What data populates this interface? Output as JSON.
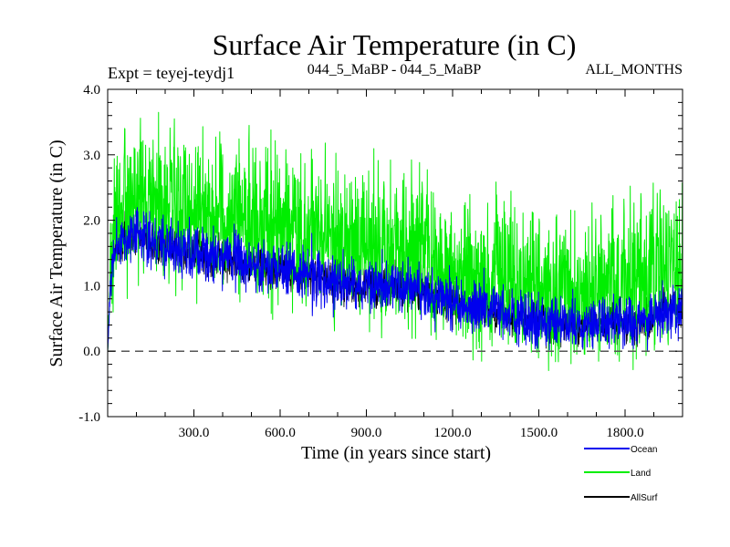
{
  "chart_data": {
    "type": "line",
    "title": "Surface Air Temperature (in C)",
    "subtitle_left": "Expt = teyej-teydj1",
    "subtitle_center": "044_5_MaBP - 044_5_MaBP",
    "subtitle_right": "ALL_MONTHS",
    "xlabel": "Time (in years since start)",
    "ylabel": "Surface Air Temperature (in C)",
    "xlim": [
      0,
      2000
    ],
    "ylim": [
      -1.0,
      4.0
    ],
    "x_ticks": [
      300,
      600,
      900,
      1200,
      1500,
      1800
    ],
    "x_tick_labels": [
      "300.0",
      "600.0",
      "900.0",
      "1200.0",
      "1500.0",
      "1800.0"
    ],
    "y_ticks": [
      -1.0,
      0.0,
      1.0,
      2.0,
      3.0,
      4.0
    ],
    "y_tick_labels": [
      "-1.0",
      "0.0",
      "1.0",
      "2.0",
      "3.0",
      "4.0"
    ],
    "reference_line": 0.0,
    "series": [
      {
        "name": "Land",
        "color": "#00ee00",
        "trend_x": [
          0,
          10,
          30,
          60,
          100,
          200,
          300,
          400,
          500,
          600,
          700,
          800,
          900,
          1000,
          1100,
          1200,
          1300,
          1400,
          1500,
          1600,
          1700,
          1800,
          1900,
          2000
        ],
        "trend_y": [
          0.0,
          1.2,
          2.0,
          2.3,
          2.35,
          2.3,
          2.2,
          2.1,
          2.0,
          1.95,
          1.8,
          1.7,
          1.6,
          1.55,
          1.5,
          1.2,
          1.15,
          1.1,
          1.0,
          0.95,
          0.95,
          1.1,
          1.15,
          1.4
        ],
        "noise": 0.55
      },
      {
        "name": "Ocean",
        "color": "#0000ee",
        "trend_x": [
          0,
          10,
          30,
          60,
          100,
          200,
          300,
          400,
          500,
          600,
          700,
          800,
          900,
          1000,
          1100,
          1200,
          1300,
          1400,
          1500,
          1600,
          1700,
          1800,
          1900,
          2000
        ],
        "trend_y": [
          0.0,
          1.0,
          1.6,
          1.75,
          1.8,
          1.6,
          1.5,
          1.4,
          1.3,
          1.25,
          1.15,
          1.05,
          1.0,
          1.0,
          0.95,
          0.7,
          0.65,
          0.55,
          0.45,
          0.42,
          0.4,
          0.45,
          0.5,
          0.75
        ],
        "noise": 0.2
      },
      {
        "name": "AllSurf",
        "color": "#000000",
        "trend_x": [
          0,
          10,
          30,
          60,
          100,
          200,
          300,
          400,
          500,
          600,
          700,
          800,
          900,
          1000,
          1100,
          1200,
          1300,
          1400,
          1500,
          1600,
          1700,
          1800,
          1900,
          2000
        ],
        "trend_y": [
          0.0,
          1.0,
          1.6,
          1.75,
          1.8,
          1.6,
          1.5,
          1.4,
          1.3,
          1.25,
          1.15,
          1.05,
          1.0,
          1.0,
          0.95,
          0.7,
          0.65,
          0.55,
          0.45,
          0.42,
          0.4,
          0.45,
          0.5,
          0.75
        ],
        "noise": 0.15
      }
    ],
    "legend_position": "bottom-right",
    "legend": [
      "Ocean",
      "Land",
      "AllSurf"
    ]
  }
}
